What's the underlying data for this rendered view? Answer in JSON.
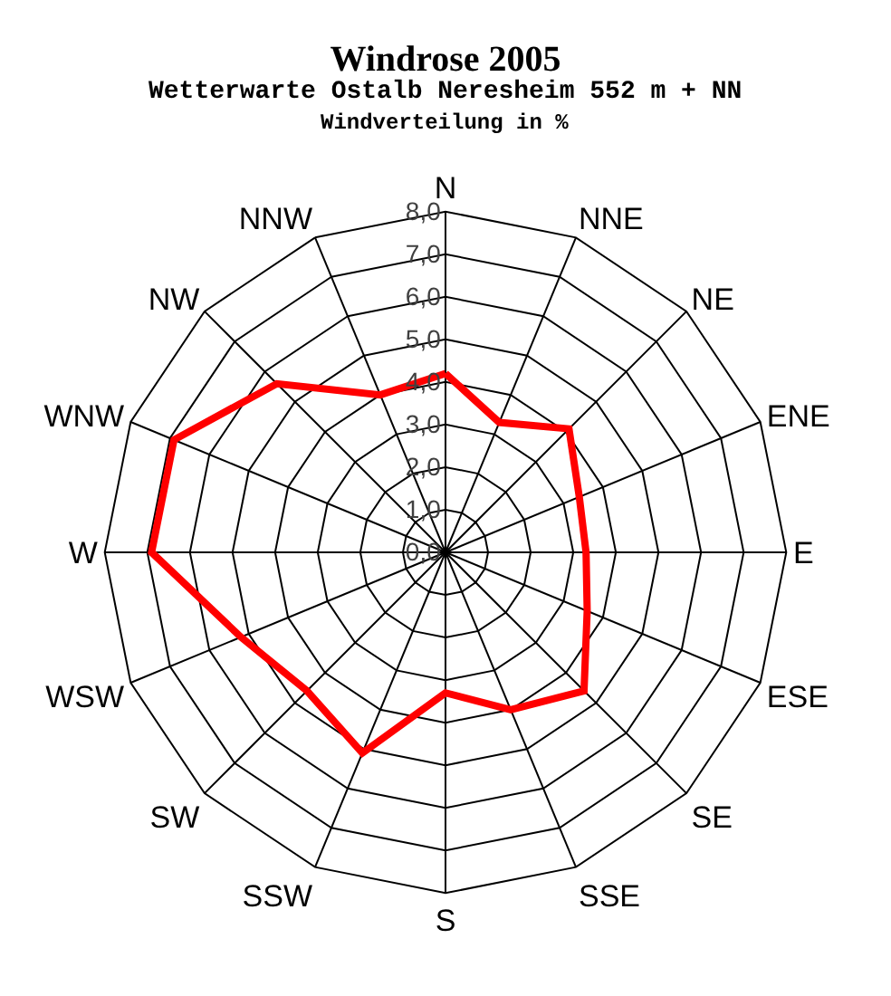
{
  "chart_data": {
    "type": "radar",
    "title": "Windrose 2005",
    "subtitle": "Wetterwarte Ostalb Neresheim 552 m + NN",
    "annotations": [
      "Windverteilung in %"
    ],
    "categories": [
      "N",
      "NNE",
      "NE",
      "ENE",
      "E",
      "ESE",
      "SE",
      "SSE",
      "S",
      "SSW",
      "SW",
      "WSW",
      "W",
      "WNW",
      "NW",
      "NNW"
    ],
    "series": [
      {
        "color": "#ff0000",
        "values": [
          4.2,
          3.3,
          4.1,
          3.4,
          3.3,
          3.6,
          4.6,
          4.0,
          3.3,
          5.1,
          4.6,
          5.2,
          6.9,
          6.9,
          5.6,
          4.0
        ]
      }
    ],
    "ylim": [
      0,
      8
    ],
    "yticks": [
      {
        "value": 0,
        "label": "0,0"
      },
      {
        "value": 1,
        "label": "1,0"
      },
      {
        "value": 2,
        "label": "2,0"
      },
      {
        "value": 3,
        "label": "3,0"
      },
      {
        "value": 4,
        "label": "4,0"
      },
      {
        "value": 5,
        "label": "5,0"
      },
      {
        "value": 6,
        "label": "6,0"
      },
      {
        "value": 7,
        "label": "7,0"
      },
      {
        "value": 8,
        "label": "8,0"
      }
    ],
    "grid": true,
    "marker": "none",
    "line_style": "solid"
  }
}
